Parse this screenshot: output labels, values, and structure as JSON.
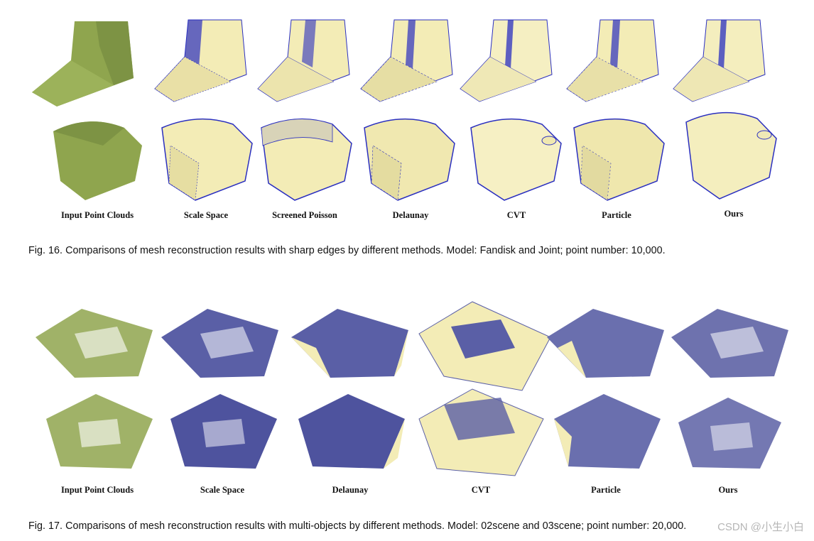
{
  "fig16": {
    "columns": [
      "Input Point Clouds",
      "Scale Space",
      "Screened Poisson",
      "Delaunay",
      "CVT",
      "Particle",
      "Ours"
    ],
    "caption": "Fig. 16. Comparisons of mesh reconstruction results with sharp edges by different methods. Model: Fandisk and Joint; point number: 10,000."
  },
  "fig17": {
    "columns": [
      "Input Point Clouds",
      "Scale Space",
      "Delaunay",
      "CVT",
      "Particle",
      "Ours"
    ],
    "caption": "Fig. 17. Comparisons of mesh reconstruction results with multi-objects by different methods. Model: 02scene and 03scene; point number: 20,000."
  },
  "watermark": "CSDN @小生小白",
  "colors": {
    "point_cloud": "#8fa54e",
    "mesh_face": "#f3ecb6",
    "mesh_edge": "#2a2fc0",
    "scene_mesh": "#5a5fa6"
  }
}
